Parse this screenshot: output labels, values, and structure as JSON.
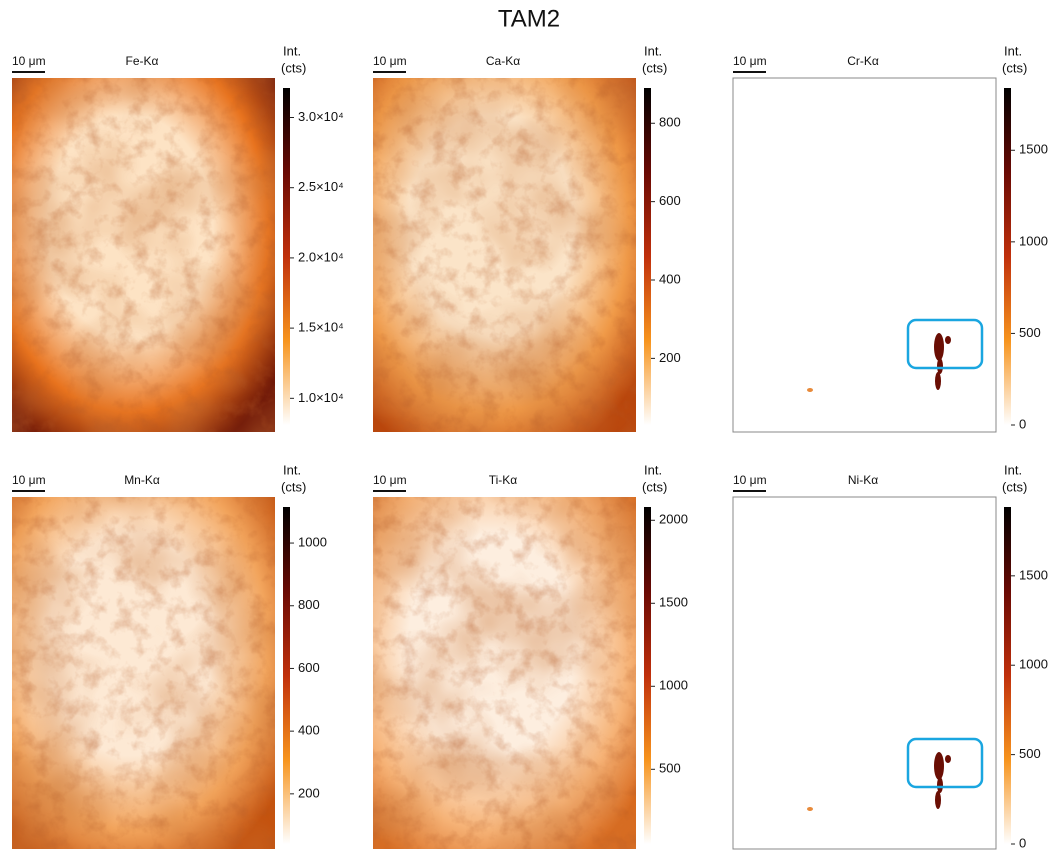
{
  "title": "TAM2",
  "colormap": [
    "#ffffff",
    "#f7941d",
    "#c0300c",
    "#6a0a04",
    "#000000"
  ],
  "chart_data": [
    {
      "type": "heatmap",
      "title": "Fe-Kα",
      "scale_bar": "10 μm",
      "colorbar_label": [
        "Int.",
        "(cts)"
      ],
      "clim": [
        8100,
        32100
      ],
      "cticks": [
        {
          "value": 10000,
          "label": "1.0×10⁴"
        },
        {
          "value": 15000,
          "label": "1.5×10⁴"
        },
        {
          "value": 20000,
          "label": "2.0×10⁴"
        },
        {
          "value": 25000,
          "label": "2.5×10⁴"
        },
        {
          "value": 30000,
          "label": "3.0×10⁴"
        }
      ]
    },
    {
      "type": "heatmap",
      "title": "Ca-Kα",
      "scale_bar": "10 μm",
      "colorbar_label": [
        "Int.",
        "(cts)"
      ],
      "clim": [
        30,
        890
      ],
      "cticks": [
        200,
        400,
        600,
        800
      ]
    },
    {
      "type": "heatmap",
      "title": "Cr-Kα",
      "scale_bar": "10 μm",
      "colorbar_label": [
        "Int.",
        "(cts)"
      ],
      "clim": [
        0,
        1840
      ],
      "cticks": [
        0,
        500,
        1000,
        1500
      ]
    },
    {
      "type": "heatmap",
      "title": "Mn-Kα",
      "scale_bar": "10 μm",
      "colorbar_label": [
        "Int.",
        "(cts)"
      ],
      "clim": [
        40,
        1115
      ],
      "cticks": [
        200,
        400,
        600,
        800,
        1000
      ]
    },
    {
      "type": "heatmap",
      "title": "Ti-Kα",
      "scale_bar": "10 μm",
      "colorbar_label": [
        "Int.",
        "(cts)"
      ],
      "clim": [
        50,
        2080
      ],
      "cticks": [
        500,
        1000,
        1500,
        2000
      ]
    },
    {
      "type": "heatmap",
      "title": "Ni-Kα",
      "scale_bar": "10 μm",
      "colorbar_label": [
        "Int.",
        "(cts)"
      ],
      "clim": [
        0,
        1885
      ],
      "cticks": [
        0,
        500,
        1000,
        1500
      ]
    }
  ]
}
